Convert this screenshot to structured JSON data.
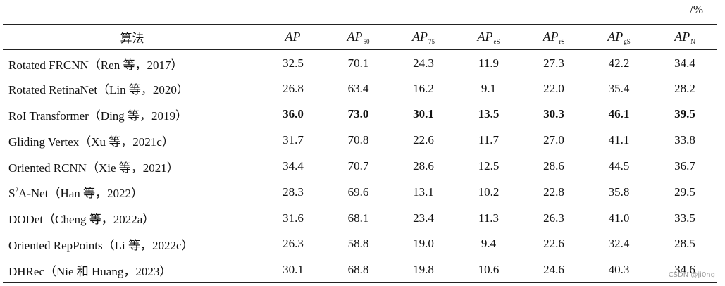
{
  "unit": "/%",
  "header": {
    "method": "算法",
    "metrics": [
      {
        "base": "AP",
        "sub": ""
      },
      {
        "base": "AP",
        "sub": "50"
      },
      {
        "base": "AP",
        "sub": "75"
      },
      {
        "base": "AP",
        "sub": "eS"
      },
      {
        "base": "AP",
        "sub": "rS"
      },
      {
        "base": "AP",
        "sub": "gS"
      },
      {
        "base": "AP",
        "sub": "N"
      }
    ]
  },
  "rows": [
    {
      "pre": "Rotated FRCNN（Ren 等，2017）",
      "sup": "",
      "post": "",
      "values": [
        "32.5",
        "70.1",
        "24.3",
        "11.9",
        "27.3",
        "42.2",
        "34.4"
      ],
      "bold": false
    },
    {
      "pre": "Rotated RetinaNet（Lin 等，2020）",
      "sup": "",
      "post": "",
      "values": [
        "26.8",
        "63.4",
        "16.2",
        "9.1",
        "22.0",
        "35.4",
        "28.2"
      ],
      "bold": false
    },
    {
      "pre": "RoI Transformer（Ding 等，2019）",
      "sup": "",
      "post": "",
      "values": [
        "36.0",
        "73.0",
        "30.1",
        "13.5",
        "30.3",
        "46.1",
        "39.5"
      ],
      "bold": true
    },
    {
      "pre": "Gliding Vertex（Xu 等，2021c）",
      "sup": "",
      "post": "",
      "values": [
        "31.7",
        "70.8",
        "22.6",
        "11.7",
        "27.0",
        "41.1",
        "33.8"
      ],
      "bold": false
    },
    {
      "pre": "Oriented RCNN（Xie 等，2021）",
      "sup": "",
      "post": "",
      "values": [
        "34.4",
        "70.7",
        "28.6",
        "12.5",
        "28.6",
        "44.5",
        "36.7"
      ],
      "bold": false
    },
    {
      "pre": "S",
      "sup": "2",
      "post": "A-Net（Han 等，2022）",
      "values": [
        "28.3",
        "69.6",
        "13.1",
        "10.2",
        "22.8",
        "35.8",
        "29.5"
      ],
      "bold": false
    },
    {
      "pre": "DODet（Cheng 等，2022a）",
      "sup": "",
      "post": "",
      "values": [
        "31.6",
        "68.1",
        "23.4",
        "11.3",
        "26.3",
        "41.0",
        "33.5"
      ],
      "bold": false
    },
    {
      "pre": "Oriented RepPoints（Li 等，2022c）",
      "sup": "",
      "post": "",
      "values": [
        "26.3",
        "58.8",
        "19.0",
        "9.4",
        "22.6",
        "32.4",
        "28.5"
      ],
      "bold": false
    },
    {
      "pre": "DHRec（Nie 和 Huang，2023）",
      "sup": "",
      "post": "",
      "values": [
        "30.1",
        "68.8",
        "19.8",
        "10.6",
        "24.6",
        "40.3",
        "34.6"
      ],
      "bold": false
    }
  ],
  "watermark": "CSDN @ji0ng"
}
